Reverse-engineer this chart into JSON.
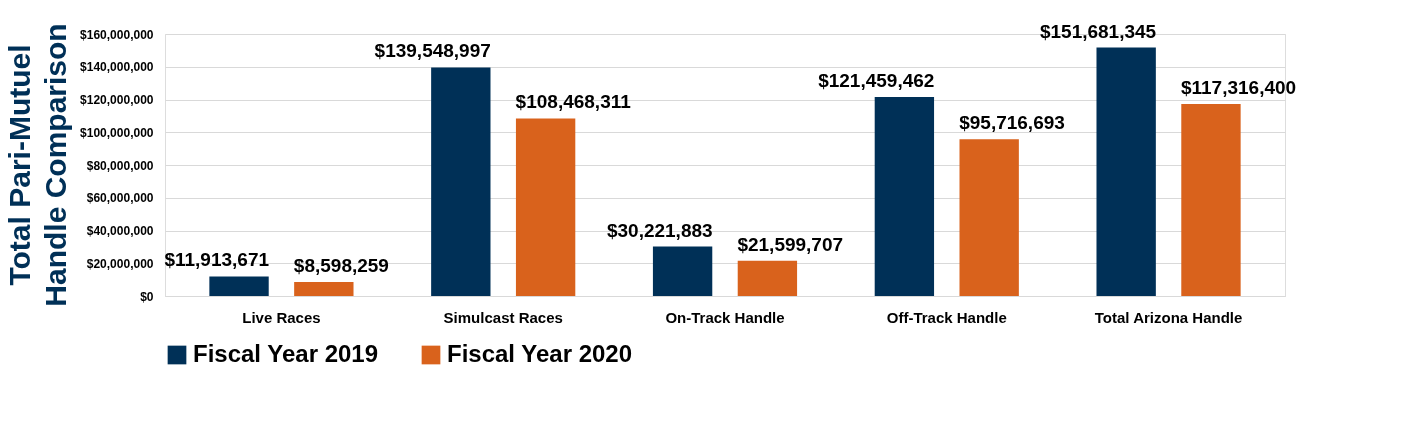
{
  "chart_data": {
    "type": "bar",
    "title": "Total Pari-Mutuel Handle Comparison",
    "categories": [
      "Live Races",
      "Simulcast Races",
      "On-Track Handle",
      "Off-Track Handle",
      "Total Arizona Handle"
    ],
    "series": [
      {
        "name": "Fiscal Year 2019",
        "color": "#003057",
        "values": [
          11913671,
          139548997,
          30221883,
          121459462,
          151681345
        ],
        "value_labels": [
          "$11,913,671",
          "$139,548,997",
          "$30,221,883",
          "$121,459,462",
          "$151,681,345"
        ]
      },
      {
        "name": "Fiscal Year 2020",
        "color": "#d9621c",
        "values": [
          8598259,
          108468311,
          21599707,
          95716693,
          117316400
        ],
        "value_labels": [
          "$8,598,259",
          "$108,468,311",
          "$21,599,707",
          "$95,716,693",
          "$117,316,400"
        ]
      }
    ],
    "ylim": [
      0,
      160000000
    ],
    "yticks": [
      {
        "value": 0,
        "label": "$0"
      },
      {
        "value": 20000000,
        "label": "$20,000,000"
      },
      {
        "value": 40000000,
        "label": "$40,000,000"
      },
      {
        "value": 60000000,
        "label": "$60,000,000"
      },
      {
        "value": 80000000,
        "label": "$80,000,000"
      },
      {
        "value": 100000000,
        "label": "$100,000,000"
      },
      {
        "value": 120000000,
        "label": "$120,000,000"
      },
      {
        "value": 140000000,
        "label": "$140,000,000"
      },
      {
        "value": 160000000,
        "label": "$160,000,000"
      }
    ],
    "grid": "y",
    "legend": "bottom"
  }
}
